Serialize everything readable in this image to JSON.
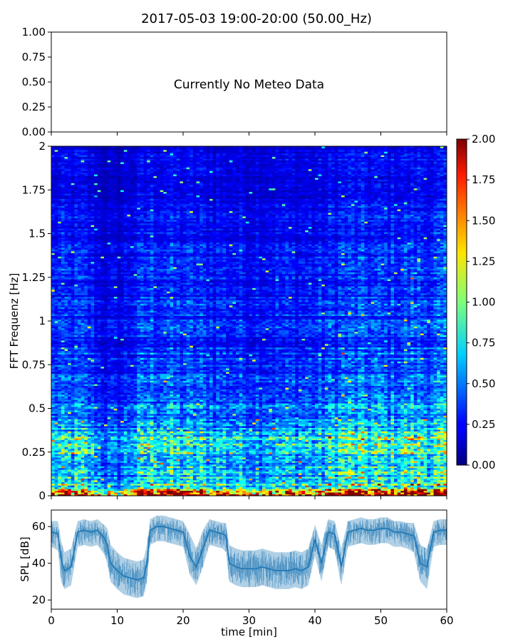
{
  "figure": {
    "title": "2017-05-03 19:00-20:00 (50.00_Hz)"
  },
  "chart_data": [
    {
      "type": "line",
      "panel": "meteo",
      "title": "",
      "annotation": "Currently No Meteo Data",
      "ylim": [
        0,
        1
      ],
      "yticks": [
        "0.00",
        "0.25",
        "0.50",
        "0.75",
        "1.00"
      ],
      "xlim": [
        0,
        60
      ],
      "series": []
    },
    {
      "type": "heatmap",
      "panel": "spectrogram",
      "ylabel": "FFT Frequenz [Hz]",
      "ylim": [
        0,
        2
      ],
      "yticks": [
        "0",
        "0.25",
        "0.5",
        "0.75",
        "1",
        "1.25",
        "1.5",
        "1.75",
        "2"
      ],
      "xlim": [
        0,
        60
      ],
      "colormap": "jet",
      "colorbar": {
        "range": [
          0,
          2
        ],
        "ticks": [
          "0.00",
          "0.25",
          "0.50",
          "0.75",
          "1.00",
          "1.25",
          "1.50",
          "1.75",
          "2.00"
        ]
      },
      "typical_level_by_frequency": [
        {
          "f": 0.0,
          "level": 1.8
        },
        {
          "f": 0.05,
          "level": 0.85
        },
        {
          "f": 0.1,
          "level": 0.6
        },
        {
          "f": 0.2,
          "level": 0.55
        },
        {
          "f": 0.3,
          "level": 0.75
        },
        {
          "f": 0.4,
          "level": 0.5
        },
        {
          "f": 0.6,
          "level": 0.4
        },
        {
          "f": 0.75,
          "level": 0.35
        },
        {
          "f": 1.0,
          "level": 0.3
        },
        {
          "f": 1.5,
          "level": 0.25
        },
        {
          "f": 2.0,
          "level": 0.2
        }
      ],
      "activity_by_minute": [
        {
          "t": 0,
          "level": 1.0
        },
        {
          "t": 5,
          "level": 1.05
        },
        {
          "t": 8,
          "level": 0.7
        },
        {
          "t": 10,
          "level": 0.65
        },
        {
          "t": 15,
          "level": 1.2
        },
        {
          "t": 20,
          "level": 1.1
        },
        {
          "t": 25,
          "level": 1.0
        },
        {
          "t": 30,
          "level": 0.95
        },
        {
          "t": 35,
          "level": 0.95
        },
        {
          "t": 40,
          "level": 0.95
        },
        {
          "t": 45,
          "level": 1.25
        },
        {
          "t": 50,
          "level": 1.15
        },
        {
          "t": 55,
          "level": 1.25
        },
        {
          "t": 60,
          "level": 1.2
        }
      ]
    },
    {
      "type": "area",
      "panel": "spl",
      "xlabel": "time [min]",
      "ylabel": "SPL [dB]",
      "xlim": [
        0,
        60
      ],
      "ylim": [
        15,
        69
      ],
      "xticks": [
        "0",
        "10",
        "20",
        "30",
        "40",
        "50",
        "60"
      ],
      "yticks": [
        "20",
        "40",
        "60"
      ],
      "color": "#1f77b4",
      "series": [
        {
          "x": [
            0,
            1,
            1.5,
            2,
            3,
            4,
            5,
            6,
            7,
            8,
            8.5,
            9,
            10,
            11,
            12,
            13,
            14,
            14.5,
            15,
            16,
            17,
            18,
            19,
            20,
            21,
            22,
            23,
            24,
            25,
            26,
            26.5,
            27,
            28,
            29,
            30,
            31,
            32,
            33,
            34,
            35,
            36,
            37,
            38,
            39,
            40,
            41,
            42,
            43,
            44,
            45,
            46,
            47,
            48,
            49,
            50,
            51,
            52,
            53,
            54,
            55,
            56,
            57,
            58,
            59,
            60
          ],
          "values": [
            57,
            56,
            42,
            36,
            38,
            57,
            58,
            57,
            58,
            54,
            50,
            40,
            36,
            33,
            32,
            31,
            32,
            40,
            58,
            60,
            60,
            59,
            58,
            57,
            44,
            38,
            48,
            58,
            57,
            56,
            55,
            40,
            38,
            37,
            37,
            37,
            38,
            37,
            36,
            36,
            36,
            37,
            36,
            38,
            53,
            40,
            57,
            56,
            38,
            57,
            58,
            59,
            58,
            58,
            59,
            59,
            57,
            57,
            56,
            55,
            40,
            38,
            57,
            58,
            58
          ],
          "min": [
            49,
            47,
            30,
            26,
            28,
            49,
            50,
            49,
            50,
            45,
            40,
            30,
            26,
            23,
            22,
            21,
            22,
            30,
            50,
            52,
            52,
            51,
            50,
            49,
            34,
            28,
            38,
            50,
            49,
            48,
            46,
            30,
            28,
            27,
            27,
            27,
            28,
            27,
            26,
            26,
            26,
            27,
            26,
            28,
            44,
            30,
            49,
            47,
            28,
            49,
            50,
            51,
            50,
            50,
            51,
            51,
            49,
            49,
            48,
            46,
            30,
            26,
            49,
            50,
            50
          ],
          "max": [
            63,
            63,
            52,
            46,
            48,
            63,
            64,
            63,
            64,
            61,
            59,
            50,
            46,
            43,
            42,
            41,
            42,
            50,
            64,
            66,
            66,
            65,
            64,
            63,
            56,
            48,
            58,
            64,
            63,
            62,
            62,
            50,
            48,
            47,
            47,
            47,
            48,
            47,
            46,
            46,
            46,
            47,
            46,
            48,
            61,
            50,
            64,
            63,
            48,
            63,
            64,
            65,
            64,
            64,
            65,
            65,
            63,
            63,
            62,
            62,
            50,
            48,
            63,
            64,
            64
          ]
        }
      ]
    }
  ]
}
